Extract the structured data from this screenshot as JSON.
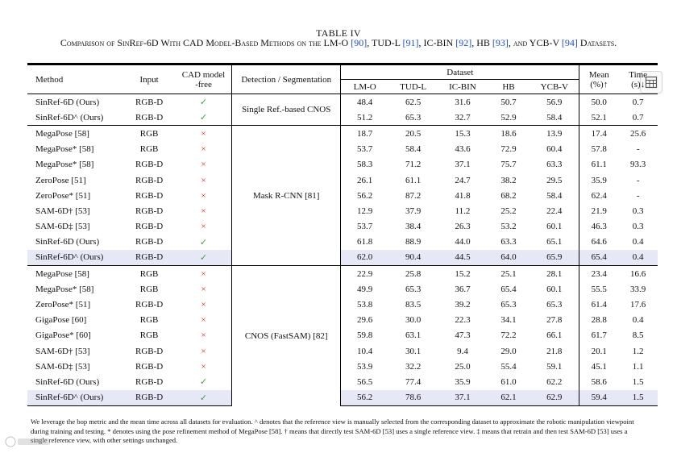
{
  "caption": {
    "number": "TABLE IV",
    "title_prefix": "Comparison of SinRef-6D With CAD Model-Based Methods on the LM-O ",
    "ref_lmo": "[90]",
    "sep1": ", TUD-L ",
    "ref_tudl": "[91]",
    "sep2": ", IC-BIN ",
    "ref_icbin": "[92]",
    "sep3": ", HB ",
    "ref_hb": "[93]",
    "sep4": ", and YCB-V ",
    "ref_ycbv": "[94]",
    "title_suffix": " Datasets."
  },
  "header": {
    "method": "Method",
    "input": "Input",
    "cad_line1": "CAD model",
    "cad_line2": "-free",
    "detection": "Detection / Segmentation",
    "dataset": "Dataset",
    "datasets": [
      "LM-O",
      "TUD-L",
      "IC-BIN",
      "HB",
      "YCB-V"
    ],
    "mean_line1": "Mean",
    "mean_line2": "(%)↑",
    "time_line1": "Time",
    "time_line2": "(s)↓"
  },
  "groups": [
    {
      "detection": "Single Ref.-based CNOS",
      "rows": [
        {
          "method": "SinRef-6D (Ours)",
          "input": "RGB-D",
          "cad": "✓",
          "cad_ok": true,
          "values": [
            "48.4",
            "62.5",
            "31.6",
            "50.7",
            "56.9"
          ],
          "mean": "50.0",
          "time": "0.7",
          "bold": [],
          "highlight": false
        },
        {
          "method": "SinRef-6D^ (Ours)",
          "input": "RGB-D",
          "cad": "✓",
          "cad_ok": true,
          "values": [
            "51.2",
            "65.3",
            "32.7",
            "52.9",
            "58.4"
          ],
          "mean": "52.1",
          "time": "0.7",
          "bold": [],
          "highlight": false
        }
      ]
    },
    {
      "detection": "Mask R-CNN [81]",
      "rows": [
        {
          "method": "MegaPose [58]",
          "input": "RGB",
          "cad": "×",
          "cad_ok": false,
          "values": [
            "18.7",
            "20.5",
            "15.3",
            "18.6",
            "13.9"
          ],
          "mean": "17.4",
          "time": "25.6",
          "bold": [],
          "highlight": false
        },
        {
          "method": "MegaPose* [58]",
          "input": "RGB",
          "cad": "×",
          "cad_ok": false,
          "values": [
            "53.7",
            "58.4",
            "43.6",
            "72.9",
            "60.4"
          ],
          "mean": "57.8",
          "time": "-",
          "bold": [],
          "highlight": false
        },
        {
          "method": "MegaPose* [58]",
          "input": "RGB-D",
          "cad": "×",
          "cad_ok": false,
          "values": [
            "58.3",
            "71.2",
            "37.1",
            "75.7",
            "63.3"
          ],
          "mean": "61.1",
          "time": "93.3",
          "bold": [
            3
          ],
          "highlight": false
        },
        {
          "method": "ZeroPose [51]",
          "input": "RGB-D",
          "cad": "×",
          "cad_ok": false,
          "values": [
            "26.1",
            "61.1",
            "24.7",
            "38.2",
            "29.5"
          ],
          "mean": "35.9",
          "time": "-",
          "bold": [],
          "highlight": false
        },
        {
          "method": "ZeroPose* [51]",
          "input": "RGB-D",
          "cad": "×",
          "cad_ok": false,
          "values": [
            "56.2",
            "87.2",
            "41.8",
            "68.2",
            "58.4"
          ],
          "mean": "62.4",
          "time": "-",
          "bold": [],
          "highlight": false
        },
        {
          "method": "SAM-6D† [53]",
          "input": "RGB-D",
          "cad": "×",
          "cad_ok": false,
          "values": [
            "12.9",
            "37.9",
            "11.2",
            "25.2",
            "22.4"
          ],
          "mean": "21.9",
          "time": "0.3",
          "bold": [
            "time"
          ],
          "highlight": false
        },
        {
          "method": "SAM-6D‡ [53]",
          "input": "RGB-D",
          "cad": "×",
          "cad_ok": false,
          "values": [
            "53.7",
            "38.4",
            "26.3",
            "53.2",
            "60.1"
          ],
          "mean": "46.3",
          "time": "0.3",
          "bold": [
            "time"
          ],
          "highlight": false
        },
        {
          "method": "SinRef-6D (Ours)",
          "input": "RGB-D",
          "cad": "✓",
          "cad_ok": true,
          "values": [
            "61.8",
            "88.9",
            "44.0",
            "63.3",
            "65.1"
          ],
          "mean": "64.6",
          "time": "0.4",
          "bold": [],
          "highlight": false
        },
        {
          "method": "SinRef-6D^ (Ours)",
          "input": "RGB-D",
          "cad": "✓",
          "cad_ok": true,
          "values": [
            "62.0",
            "90.4",
            "44.5",
            "64.0",
            "65.9"
          ],
          "mean": "65.4",
          "time": "0.4",
          "bold": [
            0,
            1,
            2,
            4,
            "mean"
          ],
          "highlight": true
        }
      ]
    },
    {
      "detection": "CNOS (FastSAM) [82]",
      "rows": [
        {
          "method": "MegaPose [58]",
          "input": "RGB",
          "cad": "×",
          "cad_ok": false,
          "values": [
            "22.9",
            "25.8",
            "15.2",
            "25.1",
            "28.1"
          ],
          "mean": "23.4",
          "time": "16.6",
          "bold": [],
          "highlight": false
        },
        {
          "method": "MegaPose* [58]",
          "input": "RGB",
          "cad": "×",
          "cad_ok": false,
          "values": [
            "49.9",
            "65.3",
            "36.7",
            "65.4",
            "60.1"
          ],
          "mean": "55.5",
          "time": "33.9",
          "bold": [],
          "highlight": false
        },
        {
          "method": "ZeroPose* [51]",
          "input": "RGB-D",
          "cad": "×",
          "cad_ok": false,
          "values": [
            "53.8",
            "83.5",
            "39.2",
            "65.3",
            "65.3"
          ],
          "mean": "61.4",
          "time": "17.6",
          "bold": [
            1
          ],
          "highlight": false
        },
        {
          "method": "GigaPose [60]",
          "input": "RGB",
          "cad": "×",
          "cad_ok": false,
          "values": [
            "29.6",
            "30.0",
            "22.3",
            "34.1",
            "27.8"
          ],
          "mean": "28.8",
          "time": "0.4",
          "bold": [
            "time"
          ],
          "highlight": false
        },
        {
          "method": "GigaPose* [60]",
          "input": "RGB",
          "cad": "×",
          "cad_ok": false,
          "values": [
            "59.8",
            "63.1",
            "47.3",
            "72.2",
            "66.1"
          ],
          "mean": "61.7",
          "time": "8.5",
          "bold": [
            0,
            2,
            3,
            4,
            "mean"
          ],
          "highlight": false
        },
        {
          "method": "SAM-6D† [53]",
          "input": "RGB-D",
          "cad": "×",
          "cad_ok": false,
          "values": [
            "10.4",
            "30.1",
            "9.4",
            "29.0",
            "21.8"
          ],
          "mean": "20.1",
          "time": "1.2",
          "bold": [],
          "highlight": false
        },
        {
          "method": "SAM-6D‡ [53]",
          "input": "RGB-D",
          "cad": "×",
          "cad_ok": false,
          "values": [
            "53.9",
            "32.2",
            "25.0",
            "55.4",
            "59.1"
          ],
          "mean": "45.1",
          "time": "1.1",
          "bold": [],
          "highlight": false
        },
        {
          "method": "SinRef-6D (Ours)",
          "input": "RGB-D",
          "cad": "✓",
          "cad_ok": true,
          "values": [
            "56.5",
            "77.4",
            "35.9",
            "61.0",
            "62.2"
          ],
          "mean": "58.6",
          "time": "1.5",
          "bold": [],
          "highlight": false
        },
        {
          "method": "SinRef-6D^ (Ours)",
          "input": "RGB-D",
          "cad": "✓",
          "cad_ok": true,
          "values": [
            "56.2",
            "78.6",
            "37.1",
            "62.1",
            "62.9"
          ],
          "mean": "59.4",
          "time": "1.5",
          "bold": [],
          "highlight": true
        }
      ]
    }
  ],
  "footnote": "We leverage the bop metric and the mean time across all datasets for evaluation. ^ denotes that the reference view is manually selected from the corresponding dataset to approximate the robotic manipulation viewpoint during training and testing. * denotes using the pose refinement method of MegaPose [58]. † means that directly test SAM-6D [53] uses a single reference view. ‡ means that retrain and then test SAM-6D [53] uses a single reference view, with other settings unchanged.",
  "colors": {
    "check": "#3aa23a",
    "cross": "#d62020",
    "highlight_row": "#e7e8f6",
    "ref_link": "#1f4fd6"
  },
  "icons": {
    "toolbar": "table-extract-icon"
  }
}
